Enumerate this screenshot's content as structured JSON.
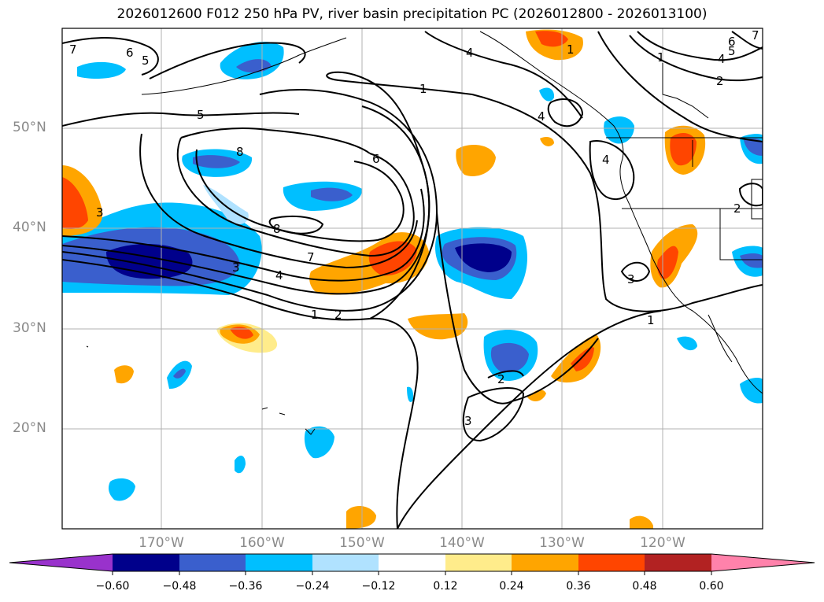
{
  "title": "2026012600 F012 250 hPa PV, river basin precipitation PC (2026012800 - 2026013100)",
  "latitude_labels": [
    "50°N",
    "40°N",
    "30°N",
    "20°N"
  ],
  "longitude_labels": [
    "170°W",
    "160°W",
    "150°W",
    "140°W",
    "130°W",
    "120°W"
  ],
  "colorbar": {
    "tick_labels": [
      "−0.60",
      "−0.48",
      "−0.36",
      "−0.24",
      "−0.12",
      "0.12",
      "0.24",
      "0.36",
      "0.48",
      "0.60"
    ],
    "colors": [
      "#9932cc",
      "#00008b",
      "#3a5fcd",
      "#00bfff",
      "#b0e2ff",
      "#ffffff",
      "#ffec8b",
      "#ffa500",
      "#ff4500",
      "#b22222",
      "#ff82ab"
    ]
  },
  "pv_contour_labels": [
    "1",
    "2",
    "3",
    "4",
    "5",
    "6",
    "7",
    "8"
  ],
  "colors": {
    "grid": "#b0b0b0",
    "contour": "#000000",
    "axis_label": "#8a8a8a"
  }
}
